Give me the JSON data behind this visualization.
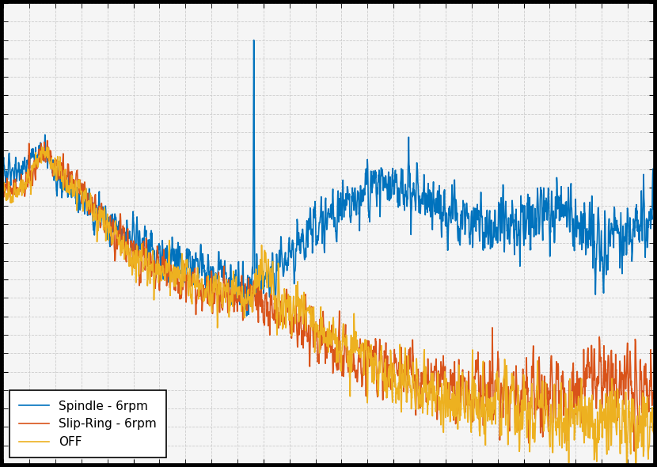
{
  "title": "",
  "xlabel": "",
  "ylabel": "",
  "background_color": "#f5f5f5",
  "grid_color": "#cccccc",
  "line1_color": "#0072BD",
  "line2_color": "#D95319",
  "line3_color": "#EDB120",
  "line1_label": "Spindle - 6rpm",
  "line2_label": "Slip-Ring - 6rpm",
  "line3_label": "OFF",
  "legend_loc": "lower left",
  "legend_fontsize": 11,
  "tick_fontsize": 11,
  "figure_facecolor": "#000000",
  "line_width": 1.2,
  "n_points": 2000,
  "xmin": 0,
  "xmax": 1,
  "ymin": 0,
  "ymax": 1
}
